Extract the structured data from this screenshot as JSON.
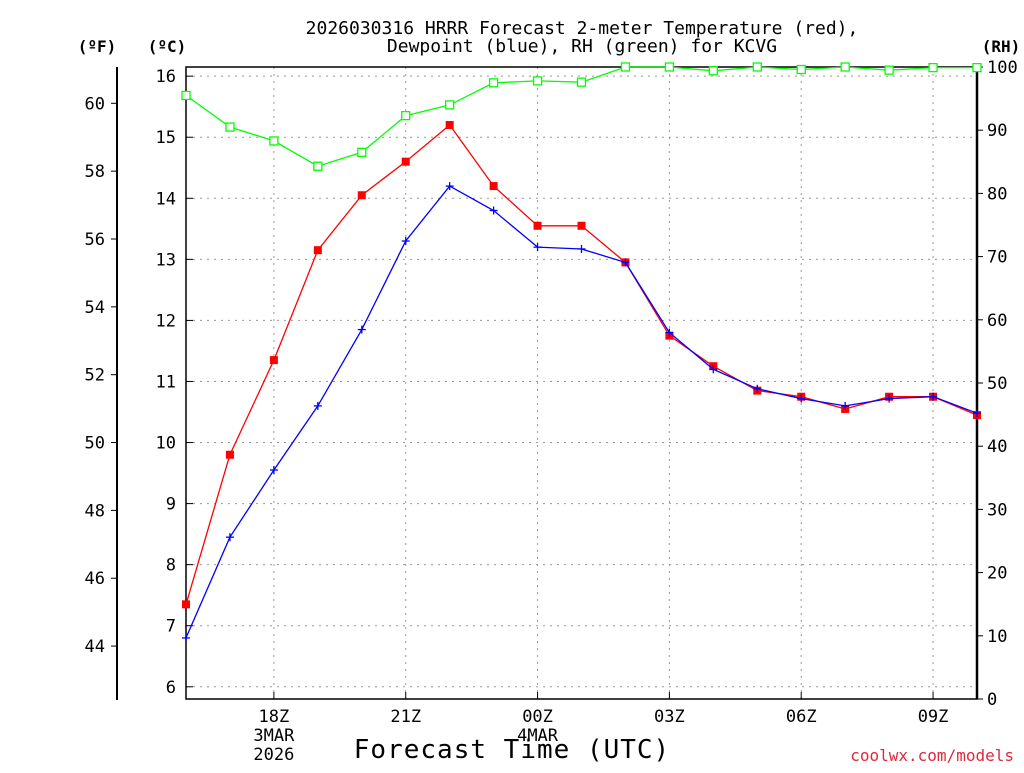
{
  "chart_data": {
    "type": "line",
    "title_line1": "2026030316 HRRR Forecast 2-meter Temperature (red),",
    "title_line2": "Dewpoint (blue), RH (green) for KCVG",
    "units_left_f": "(ºF)",
    "units_left_c": "(ºC)",
    "units_right": "(RH)",
    "xlabel": "Forecast Time (UTC)",
    "watermark": "coolwx.com/models",
    "x_hours": [
      0,
      1,
      2,
      3,
      4,
      5,
      6,
      7,
      8,
      9,
      10,
      11,
      12,
      13,
      14,
      15,
      16,
      17,
      18
    ],
    "x_range": [
      0,
      18
    ],
    "x_ticks": [
      {
        "hour": 2,
        "label": "18Z",
        "label2": "3MAR",
        "label3": "2026"
      },
      {
        "hour": 5,
        "label": "21Z"
      },
      {
        "hour": 8,
        "label": "00Z",
        "label2": "4MAR"
      },
      {
        "hour": 11,
        "label": "03Z"
      },
      {
        "hour": 14,
        "label": "06Z"
      },
      {
        "hour": 17,
        "label": "09Z"
      }
    ],
    "celsius_range": [
      5.8,
      16.15
    ],
    "celsius_ticks": [
      "6",
      "7",
      "8",
      "9",
      "10",
      "11",
      "12",
      "13",
      "14",
      "15",
      "16"
    ],
    "fahrenheit_ticks": [
      "44",
      "46",
      "48",
      "50",
      "52",
      "54",
      "56",
      "58",
      "60"
    ],
    "rh_range": [
      0,
      100
    ],
    "rh_ticks": [
      "0",
      "10",
      "20",
      "30",
      "40",
      "50",
      "60",
      "70",
      "80",
      "90",
      "100"
    ],
    "grid": true,
    "series": [
      {
        "name": "Temperature",
        "unit": "C",
        "color": "#ff0000",
        "marker": "filled-square",
        "values": [
          7.35,
          9.8,
          11.35,
          13.15,
          14.05,
          14.6,
          15.2,
          14.2,
          13.55,
          13.55,
          12.95,
          11.75,
          11.25,
          10.85,
          10.75,
          10.55,
          10.75,
          10.75,
          10.45
        ]
      },
      {
        "name": "Dewpoint",
        "unit": "C",
        "color": "#0000ff",
        "marker": "plus",
        "values": [
          6.8,
          8.45,
          9.55,
          10.6,
          11.85,
          13.3,
          14.2,
          13.8,
          13.2,
          13.17,
          12.95,
          11.8,
          11.2,
          10.88,
          10.72,
          10.6,
          10.72,
          10.75,
          10.48
        ]
      },
      {
        "name": "RH",
        "unit": "%",
        "color": "#00ff00",
        "marker": "open-square",
        "values": [
          95.5,
          90.5,
          88.3,
          84.3,
          86.5,
          92.3,
          94.0,
          97.5,
          97.8,
          97.6,
          100,
          100,
          99.4,
          100,
          99.6,
          100,
          99.5,
          99.9,
          99.9
        ]
      }
    ]
  }
}
